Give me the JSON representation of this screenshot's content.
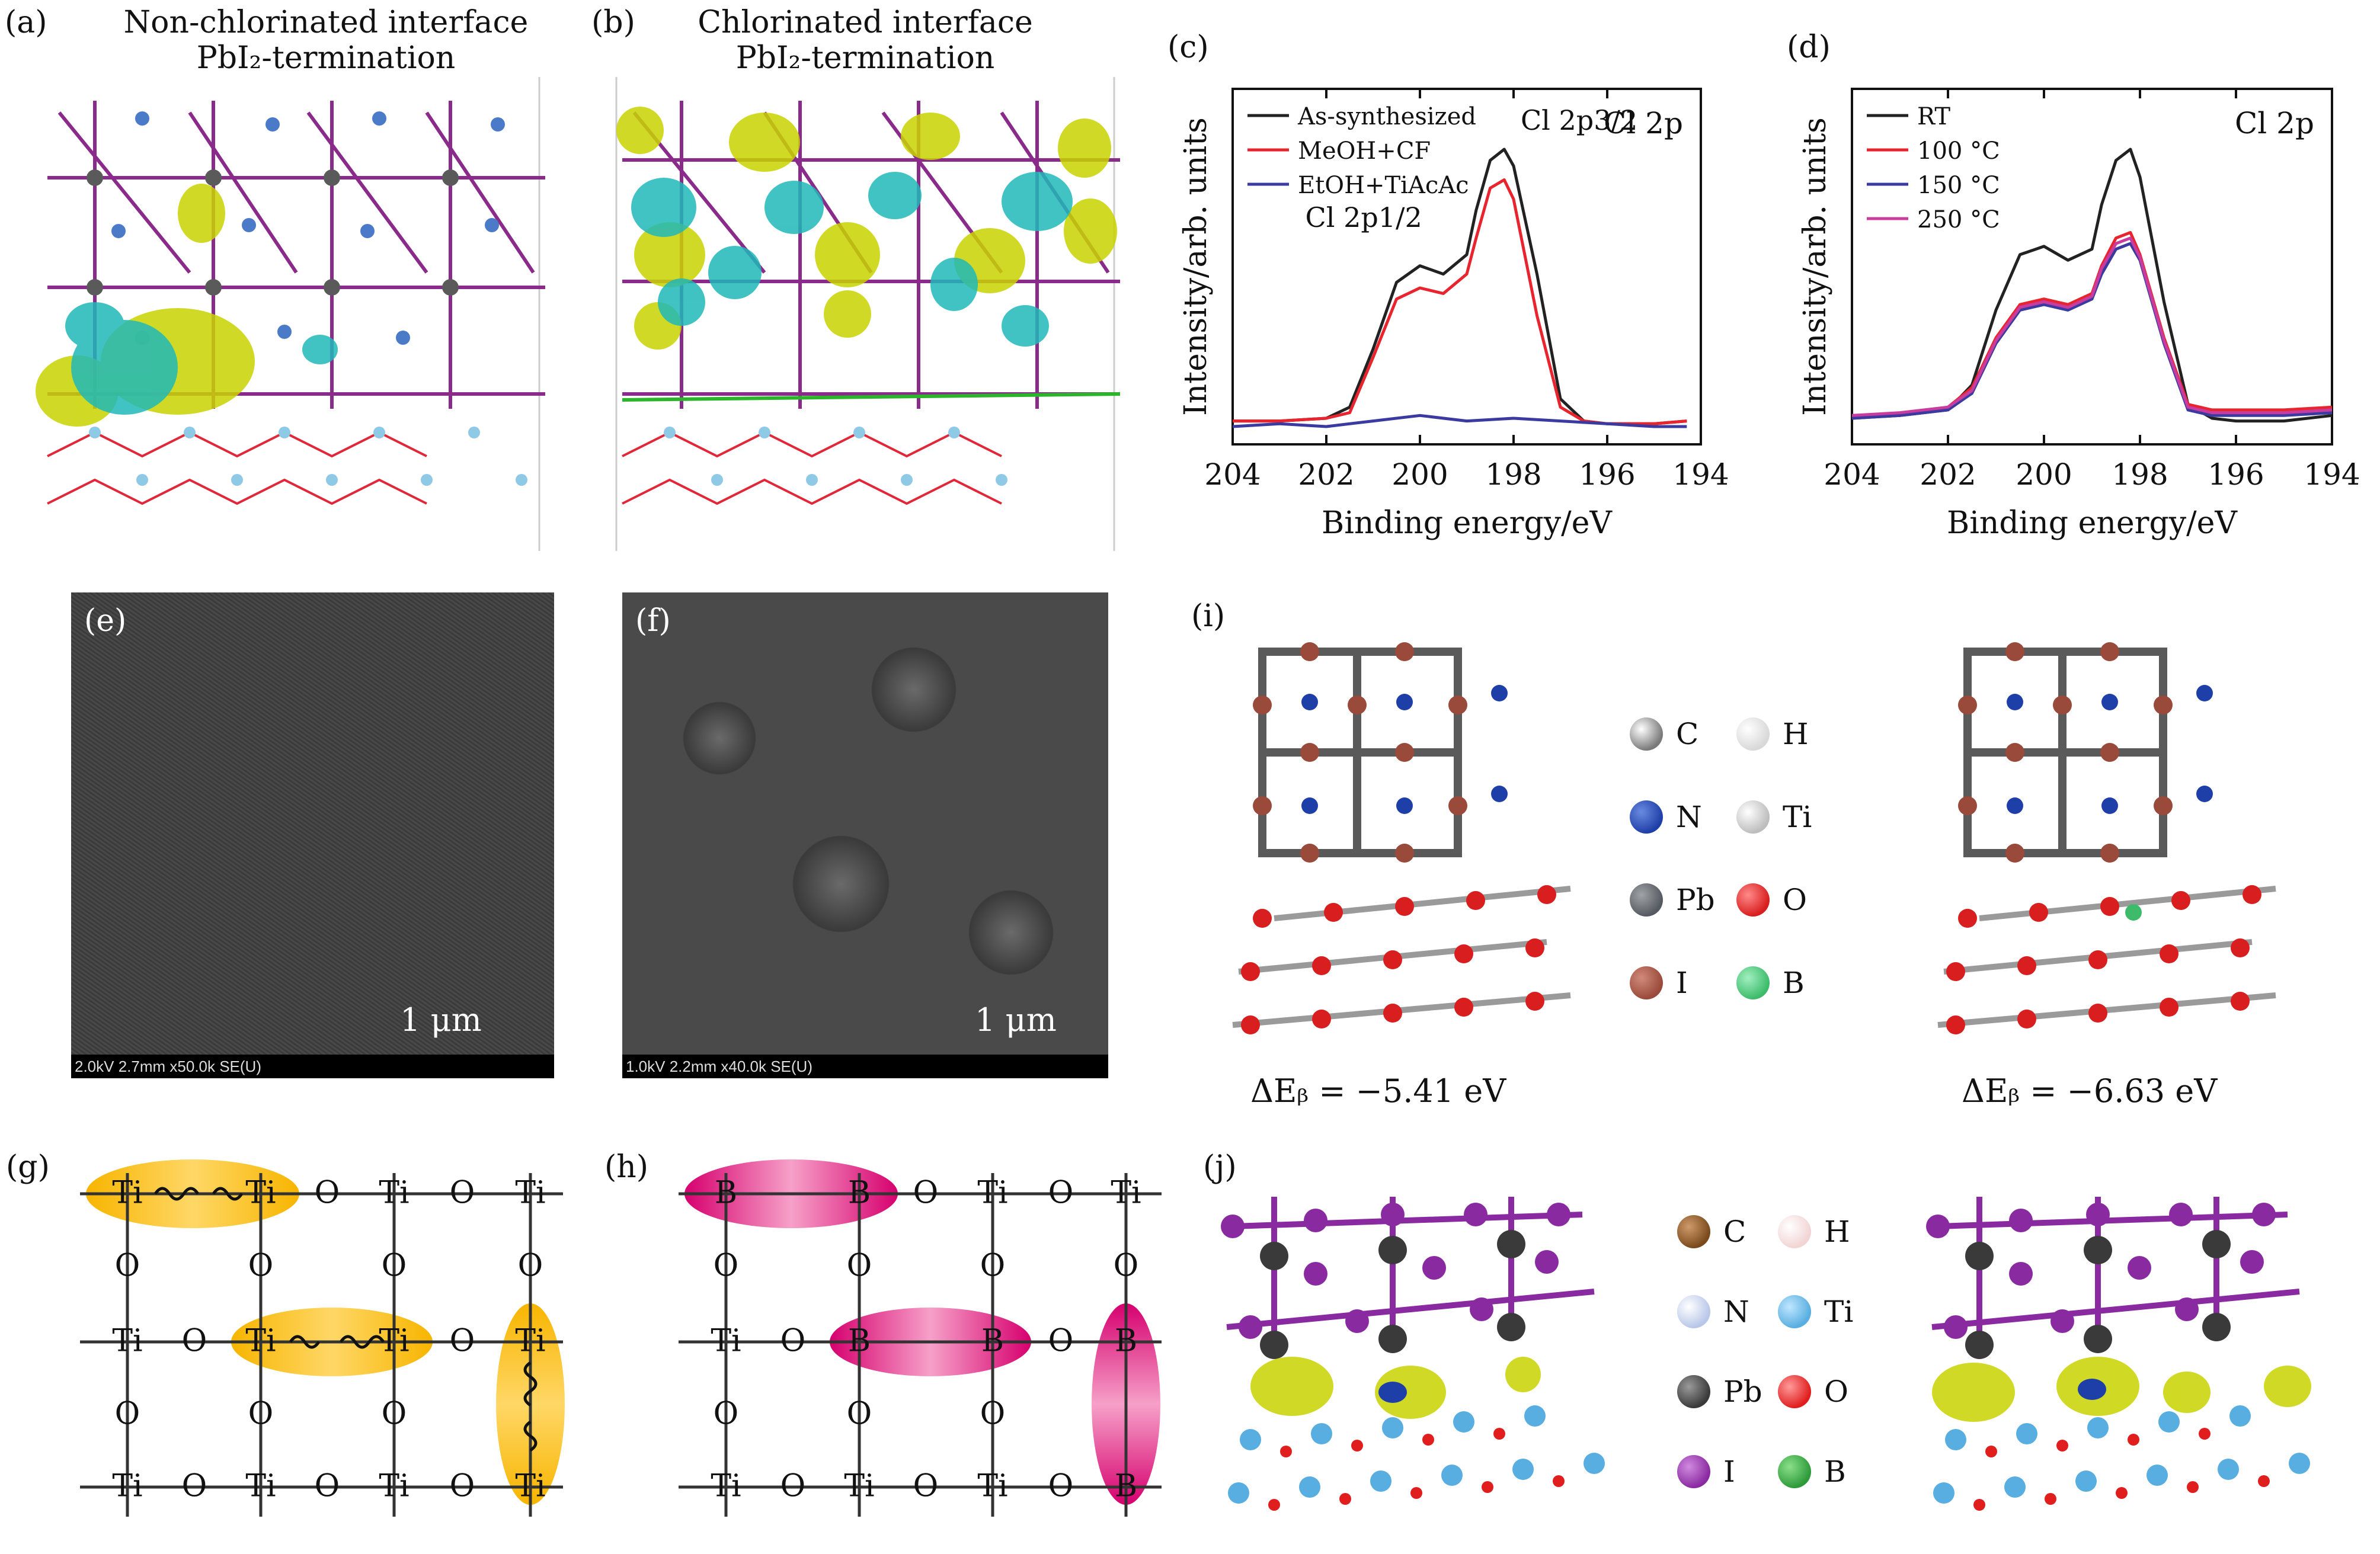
{
  "panels": {
    "a": {
      "label": "(a)",
      "title_line1": "Non-chlorinated interface",
      "title_line2": "PbI₂-termination"
    },
    "b": {
      "label": "(b)",
      "title_line1": "Chlorinated interface",
      "title_line2": "PbI₂-termination"
    },
    "c": {
      "label": "(c)"
    },
    "d": {
      "label": "(d)"
    },
    "e": {
      "label": "(e)",
      "scale": "1 μm",
      "sem_info": "2.0kV 2.7mm x50.0k SE(U)"
    },
    "f": {
      "label": "(f)",
      "scale": "1 μm",
      "sem_info": "1.0kV 2.2mm x40.0k SE(U)"
    },
    "g": {
      "label": "(g)"
    },
    "h": {
      "label": "(h)"
    },
    "i": {
      "label": "(i)",
      "delta_left": "ΔEᵦ = −5.41 eV",
      "delta_right": "ΔEᵦ = −6.63 eV",
      "legend": [
        {
          "sym": "C",
          "color": "#7a7a7a"
        },
        {
          "sym": "H",
          "color": "#e6e6e6"
        },
        {
          "sym": "N",
          "color": "#1f3fa8"
        },
        {
          "sym": "Ti",
          "color": "#c8c8c8"
        },
        {
          "sym": "Pb",
          "color": "#555a60"
        },
        {
          "sym": "O",
          "color": "#d81e1e"
        },
        {
          "sym": "I",
          "color": "#9a4a3a"
        },
        {
          "sym": "B",
          "color": "#3dbb6a"
        }
      ]
    },
    "j": {
      "label": "(j)",
      "legend": [
        {
          "sym": "C",
          "color": "#7a4a1c"
        },
        {
          "sym": "H",
          "color": "#f2d4d4"
        },
        {
          "sym": "N",
          "color": "#b8c6e8"
        },
        {
          "sym": "Ti",
          "color": "#58aee0"
        },
        {
          "sym": "Pb",
          "color": "#3a3a3a"
        },
        {
          "sym": "O",
          "color": "#e01e1e"
        },
        {
          "sym": "I",
          "color": "#8a2aa0"
        },
        {
          "sym": "B",
          "color": "#2e9a3a"
        }
      ]
    }
  },
  "chart_data": [
    {
      "panel": "c",
      "type": "line",
      "xlabel": "Binding energy/eV",
      "ylabel": "Intensity/arb. units",
      "annotation": "Cl 2p",
      "peak_labels": [
        "Cl 2p1/2",
        "Cl 2p3/2"
      ],
      "xlim": [
        204,
        194
      ],
      "xticks": [
        204,
        202,
        200,
        198,
        196,
        194
      ],
      "series": [
        {
          "name": "As-synthesized",
          "color": "#222222",
          "x": [
            204,
            203,
            202,
            201.5,
            201,
            200.5,
            200,
            199.5,
            199,
            198.8,
            198.5,
            198.2,
            198,
            197.5,
            197,
            196.5,
            196,
            195,
            194.3
          ],
          "y": [
            0.02,
            0.02,
            0.03,
            0.07,
            0.28,
            0.52,
            0.58,
            0.55,
            0.62,
            0.78,
            0.96,
            1.0,
            0.94,
            0.55,
            0.1,
            0.02,
            0.01,
            0.01,
            0.02
          ]
        },
        {
          "name": "MeOH+CF",
          "color": "#e8252e",
          "x": [
            204,
            203,
            202,
            201.5,
            201,
            200.5,
            200,
            199.5,
            199,
            198.8,
            198.5,
            198.2,
            198,
            197.5,
            197,
            196.5,
            196,
            195,
            194.3
          ],
          "y": [
            0.02,
            0.02,
            0.03,
            0.05,
            0.25,
            0.46,
            0.5,
            0.48,
            0.55,
            0.68,
            0.86,
            0.89,
            0.82,
            0.4,
            0.07,
            0.02,
            0.01,
            0.01,
            0.02
          ]
        },
        {
          "name": "EtOH+TiAcAc",
          "color": "#3a3aa0",
          "x": [
            204,
            203,
            202,
            201,
            200,
            199,
            198,
            197,
            196,
            195,
            194.3
          ],
          "y": [
            0.0,
            0.01,
            0.0,
            0.02,
            0.04,
            0.02,
            0.03,
            0.02,
            0.01,
            0.0,
            0.0
          ]
        }
      ]
    },
    {
      "panel": "d",
      "type": "line",
      "xlabel": "Binding energy/eV",
      "ylabel": "Intensity/arb. units",
      "annotation": "Cl 2p",
      "xlim": [
        204,
        194
      ],
      "xticks": [
        204,
        202,
        200,
        198,
        196,
        194
      ],
      "series": [
        {
          "name": "RT",
          "color": "#222222",
          "x": [
            204,
            203,
            202,
            201.5,
            201,
            200.5,
            200,
            199.5,
            199,
            198.8,
            198.5,
            198.2,
            198,
            197.5,
            197,
            196.5,
            196,
            195,
            194
          ],
          "y": [
            0.03,
            0.04,
            0.06,
            0.15,
            0.42,
            0.62,
            0.65,
            0.6,
            0.64,
            0.8,
            0.96,
            1.0,
            0.9,
            0.45,
            0.08,
            0.03,
            0.02,
            0.02,
            0.04
          ]
        },
        {
          "name": "100 °C",
          "color": "#e8252e",
          "x": [
            204,
            203,
            202,
            201.5,
            201,
            200.5,
            200,
            199.5,
            199,
            198.8,
            198.5,
            198.2,
            198,
            197.5,
            197,
            196.5,
            196,
            195,
            194
          ],
          "y": [
            0.04,
            0.04,
            0.07,
            0.14,
            0.32,
            0.44,
            0.46,
            0.44,
            0.48,
            0.58,
            0.68,
            0.7,
            0.62,
            0.32,
            0.08,
            0.06,
            0.06,
            0.06,
            0.07
          ]
        },
        {
          "name": "150 °C",
          "color": "#3a3aa0",
          "x": [
            204,
            203,
            202,
            201.5,
            201,
            200.5,
            200,
            199.5,
            199,
            198.8,
            198.5,
            198.2,
            198,
            197.5,
            197,
            196.5,
            196,
            195,
            194
          ],
          "y": [
            0.03,
            0.04,
            0.06,
            0.12,
            0.3,
            0.42,
            0.44,
            0.42,
            0.46,
            0.55,
            0.64,
            0.66,
            0.6,
            0.3,
            0.06,
            0.04,
            0.04,
            0.04,
            0.05
          ]
        },
        {
          "name": "250 °C",
          "color": "#c83ca0",
          "x": [
            204,
            203,
            202,
            201.5,
            201,
            200.5,
            200,
            199.5,
            199,
            198.8,
            198.5,
            198.2,
            198,
            197.5,
            197,
            196.5,
            196,
            195,
            194
          ],
          "y": [
            0.04,
            0.05,
            0.07,
            0.13,
            0.31,
            0.43,
            0.45,
            0.43,
            0.47,
            0.57,
            0.66,
            0.68,
            0.61,
            0.31,
            0.07,
            0.05,
            0.05,
            0.05,
            0.06
          ]
        }
      ]
    }
  ]
}
